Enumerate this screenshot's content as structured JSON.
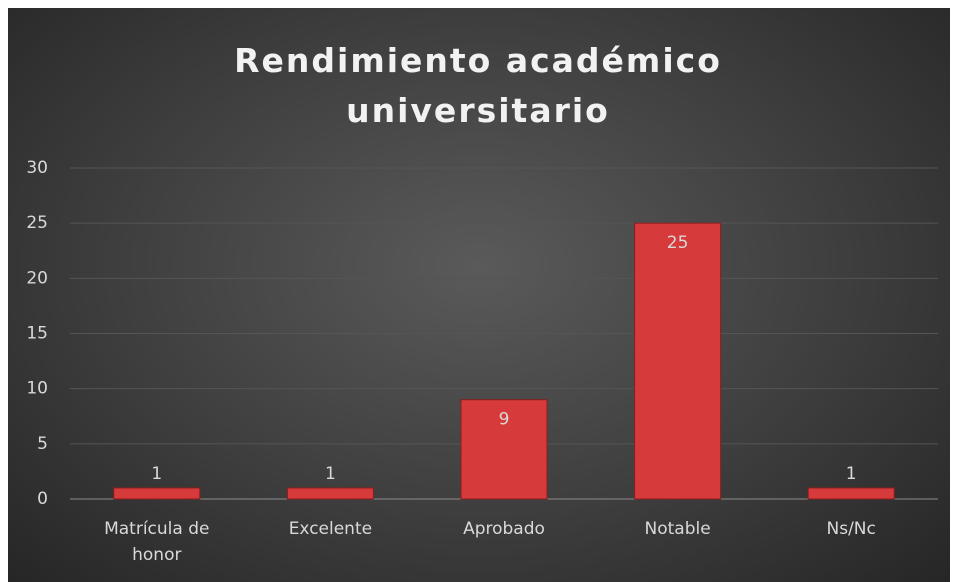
{
  "chart_data": {
    "type": "bar",
    "title": "Rendimiento académico universitario",
    "categories": [
      "Matrícula de honor",
      "Excelente",
      "Aprobado",
      "Notable",
      "Ns/Nc"
    ],
    "values": [
      1,
      1,
      9,
      25,
      1
    ],
    "color": "#d63a3a",
    "ylim": [
      0,
      30
    ],
    "yticks": [
      0,
      5,
      10,
      15,
      20,
      25,
      30
    ],
    "grid": true
  }
}
